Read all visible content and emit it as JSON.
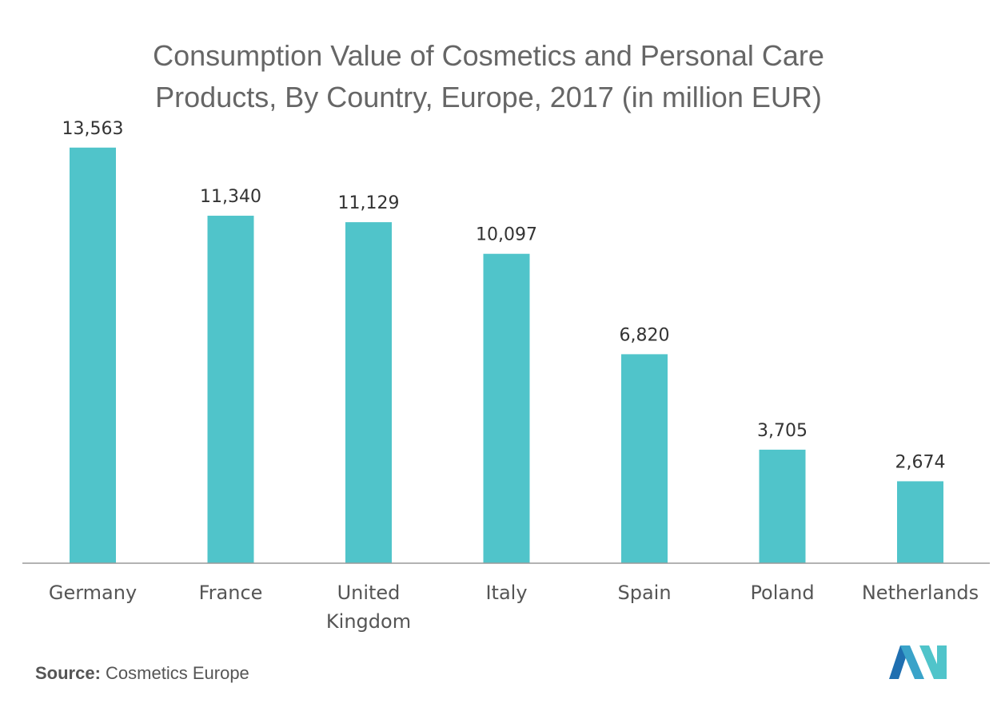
{
  "chart_data": {
    "type": "bar",
    "title_lines": [
      "Consumption Value of Cosmetics and Personal Care",
      "Products, By Country, Europe, 2017 (in million EUR)"
    ],
    "categories": [
      [
        "Germany"
      ],
      [
        "France"
      ],
      [
        "United",
        "Kingdom"
      ],
      [
        "Italy"
      ],
      [
        "Spain"
      ],
      [
        "Poland"
      ],
      [
        "Netherlands"
      ]
    ],
    "values": [
      13563,
      11340,
      11129,
      10097,
      6820,
      3705,
      2674
    ],
    "value_labels": [
      "13,563",
      "11,340",
      "11,129",
      "10,097",
      "6,820",
      "3,705",
      "2,674"
    ],
    "ylim": [
      0,
      14000
    ],
    "grid": false,
    "bar_color": "#50c4ca"
  },
  "footer": {
    "source_label": "Source:",
    "source_value": "Cosmetics Europe"
  },
  "logo": {
    "icon": "mordor-logo-icon",
    "colors": [
      "#1f6fb0",
      "#50c4ca"
    ]
  }
}
